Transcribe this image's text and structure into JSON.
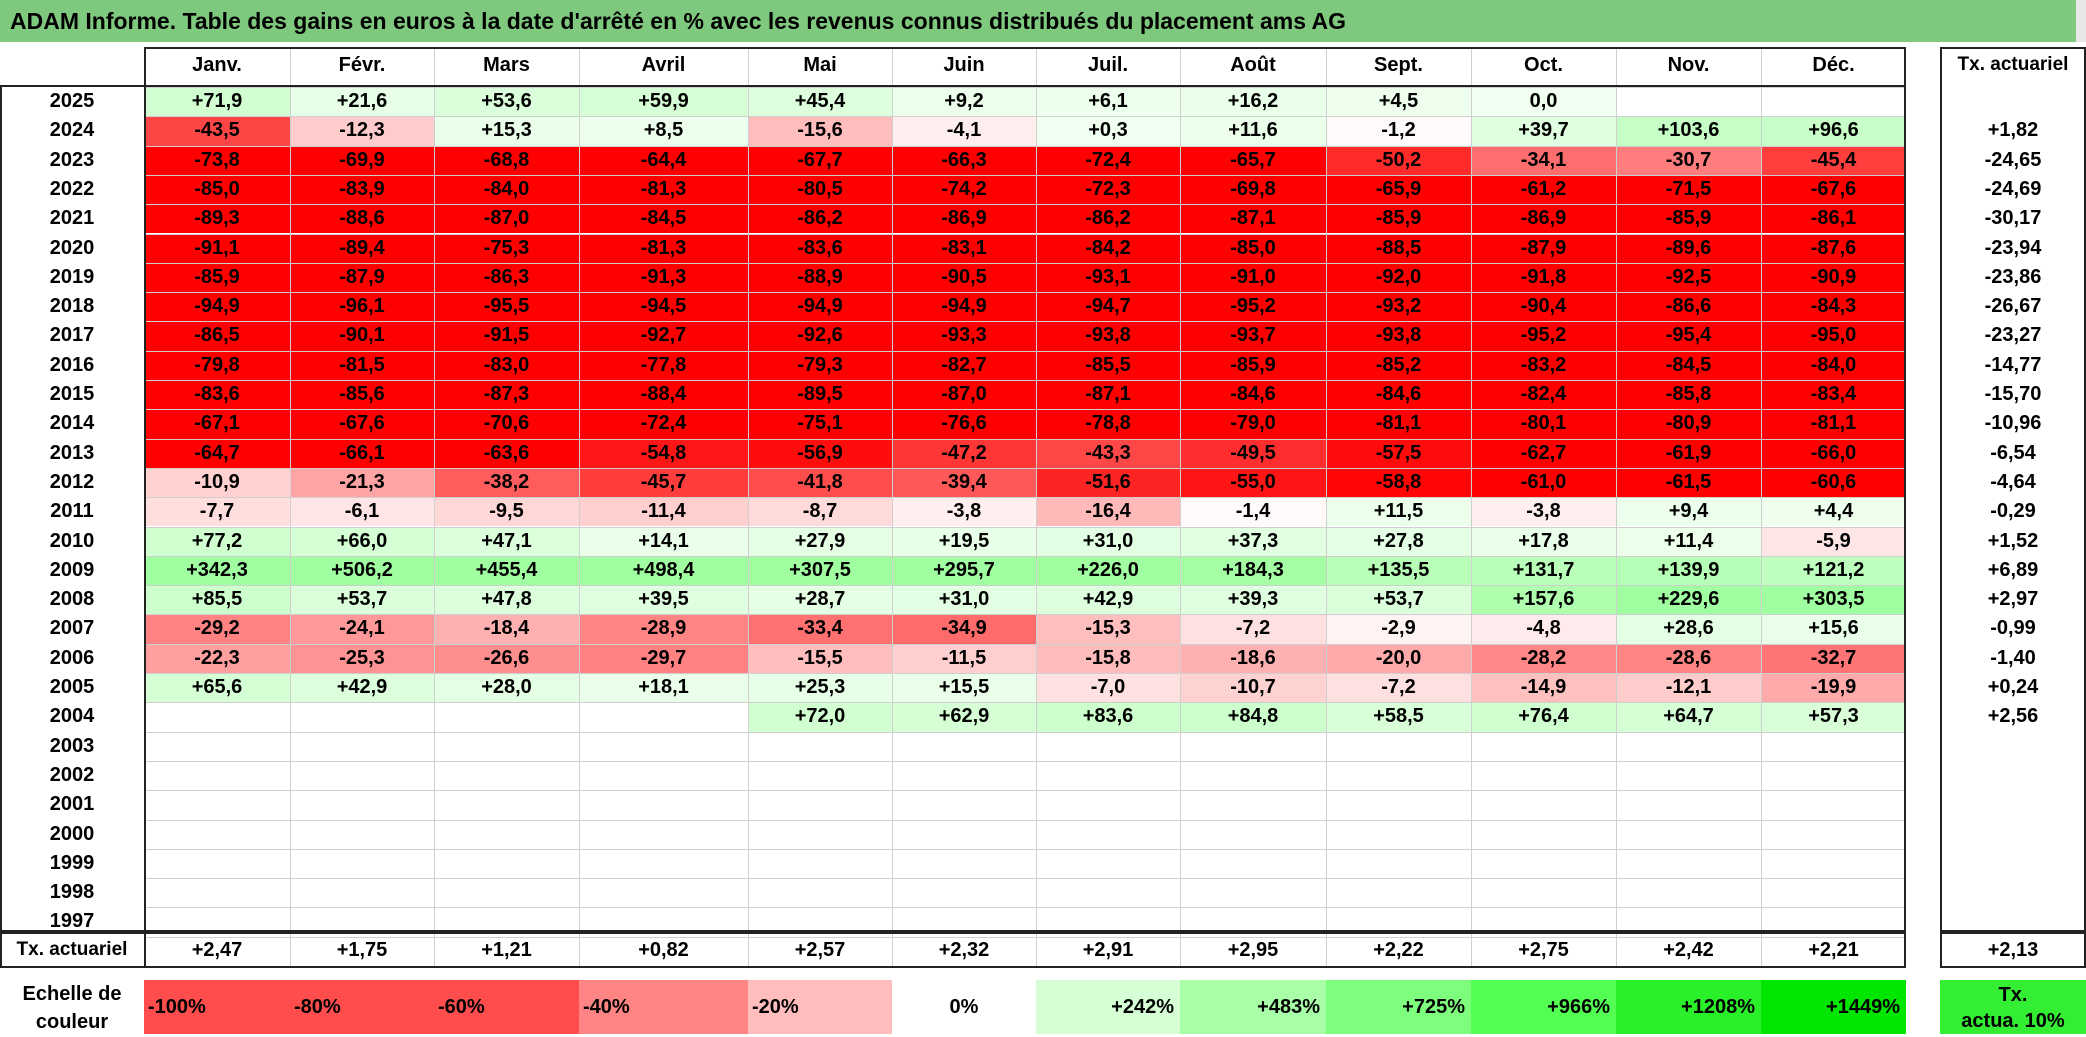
{
  "title": "ADAM Informe. Table des gains en euros à la date d'arrêté en % avec les revenus connus distribués du placement ams AG",
  "columns": [
    "Janv.",
    "Févr.",
    "Mars",
    "Avril",
    "Mai",
    "Juin",
    "Juil.",
    "Août",
    "Sept.",
    "Oct.",
    "Nov.",
    "Déc."
  ],
  "annual_header": "Tx. actuariel",
  "rows": [
    {
      "year": "2025",
      "values": [
        "+71,9",
        "+21,6",
        "+53,6",
        "+59,9",
        "+45,4",
        "+9,2",
        "+6,1",
        "+16,2",
        "+4,5",
        "0,0",
        "",
        ""
      ],
      "annual": ""
    },
    {
      "year": "2024",
      "values": [
        "-43,5",
        "-12,3",
        "+15,3",
        "+8,5",
        "-15,6",
        "-4,1",
        "+0,3",
        "+11,6",
        "-1,2",
        "+39,7",
        "+103,6",
        "+96,6"
      ],
      "annual": "+1,82"
    },
    {
      "year": "2023",
      "values": [
        "-73,8",
        "-69,9",
        "-68,8",
        "-64,4",
        "-67,7",
        "-66,3",
        "-72,4",
        "-65,7",
        "-50,2",
        "-34,1",
        "-30,7",
        "-45,4"
      ],
      "annual": "-24,65"
    },
    {
      "year": "2022",
      "values": [
        "-85,0",
        "-83,9",
        "-84,0",
        "-81,3",
        "-80,5",
        "-74,2",
        "-72,3",
        "-69,8",
        "-65,9",
        "-61,2",
        "-71,5",
        "-67,6"
      ],
      "annual": "-24,69"
    },
    {
      "year": "2021",
      "values": [
        "-89,3",
        "-88,6",
        "-87,0",
        "-84,5",
        "-86,2",
        "-86,9",
        "-86,2",
        "-87,1",
        "-85,9",
        "-86,9",
        "-85,9",
        "-86,1"
      ],
      "annual": "-30,17"
    },
    {
      "year": "2020",
      "values": [
        "-91,1",
        "-89,4",
        "-75,3",
        "-81,3",
        "-83,6",
        "-83,1",
        "-84,2",
        "-85,0",
        "-88,5",
        "-87,9",
        "-89,6",
        "-87,6"
      ],
      "annual": "-23,94"
    },
    {
      "year": "2019",
      "values": [
        "-85,9",
        "-87,9",
        "-86,3",
        "-91,3",
        "-88,9",
        "-90,5",
        "-93,1",
        "-91,0",
        "-92,0",
        "-91,8",
        "-92,5",
        "-90,9"
      ],
      "annual": "-23,86"
    },
    {
      "year": "2018",
      "values": [
        "-94,9",
        "-96,1",
        "-95,5",
        "-94,5",
        "-94,9",
        "-94,9",
        "-94,7",
        "-95,2",
        "-93,2",
        "-90,4",
        "-86,6",
        "-84,3"
      ],
      "annual": "-26,67"
    },
    {
      "year": "2017",
      "values": [
        "-86,5",
        "-90,1",
        "-91,5",
        "-92,7",
        "-92,6",
        "-93,3",
        "-93,8",
        "-93,7",
        "-93,8",
        "-95,2",
        "-95,4",
        "-95,0"
      ],
      "annual": "-23,27"
    },
    {
      "year": "2016",
      "values": [
        "-79,8",
        "-81,5",
        "-83,0",
        "-77,8",
        "-79,3",
        "-82,7",
        "-85,5",
        "-85,9",
        "-85,2",
        "-83,2",
        "-84,5",
        "-84,0"
      ],
      "annual": "-14,77"
    },
    {
      "year": "2015",
      "values": [
        "-83,6",
        "-85,6",
        "-87,3",
        "-88,4",
        "-89,5",
        "-87,0",
        "-87,1",
        "-84,6",
        "-84,6",
        "-82,4",
        "-85,8",
        "-83,4"
      ],
      "annual": "-15,70"
    },
    {
      "year": "2014",
      "values": [
        "-67,1",
        "-67,6",
        "-70,6",
        "-72,4",
        "-75,1",
        "-76,6",
        "-78,8",
        "-79,0",
        "-81,1",
        "-80,1",
        "-80,9",
        "-81,1"
      ],
      "annual": "-10,96"
    },
    {
      "year": "2013",
      "values": [
        "-64,7",
        "-66,1",
        "-63,6",
        "-54,8",
        "-56,9",
        "-47,2",
        "-43,3",
        "-49,5",
        "-57,5",
        "-62,7",
        "-61,9",
        "-66,0"
      ],
      "annual": "-6,54"
    },
    {
      "year": "2012",
      "values": [
        "-10,9",
        "-21,3",
        "-38,2",
        "-45,7",
        "-41,8",
        "-39,4",
        "-51,6",
        "-55,0",
        "-58,8",
        "-61,0",
        "-61,5",
        "-60,6"
      ],
      "annual": "-4,64"
    },
    {
      "year": "2011",
      "values": [
        "-7,7",
        "-6,1",
        "-9,5",
        "-11,4",
        "-8,7",
        "-3,8",
        "-16,4",
        "-1,4",
        "+11,5",
        "-3,8",
        "+9,4",
        "+4,4"
      ],
      "annual": "-0,29"
    },
    {
      "year": "2010",
      "values": [
        "+77,2",
        "+66,0",
        "+47,1",
        "+14,1",
        "+27,9",
        "+19,5",
        "+31,0",
        "+37,3",
        "+27,8",
        "+17,8",
        "+11,4",
        "-5,9"
      ],
      "annual": "+1,52"
    },
    {
      "year": "2009",
      "values": [
        "+342,3",
        "+506,2",
        "+455,4",
        "+498,4",
        "+307,5",
        "+295,7",
        "+226,0",
        "+184,3",
        "+135,5",
        "+131,7",
        "+139,9",
        "+121,2"
      ],
      "annual": "+6,89"
    },
    {
      "year": "2008",
      "values": [
        "+85,5",
        "+53,7",
        "+47,8",
        "+39,5",
        "+28,7",
        "+31,0",
        "+42,9",
        "+39,3",
        "+53,7",
        "+157,6",
        "+229,6",
        "+303,5"
      ],
      "annual": "+2,97"
    },
    {
      "year": "2007",
      "values": [
        "-29,2",
        "-24,1",
        "-18,4",
        "-28,9",
        "-33,4",
        "-34,9",
        "-15,3",
        "-7,2",
        "-2,9",
        "-4,8",
        "+28,6",
        "+15,6"
      ],
      "annual": "-0,99"
    },
    {
      "year": "2006",
      "values": [
        "-22,3",
        "-25,3",
        "-26,6",
        "-29,7",
        "-15,5",
        "-11,5",
        "-15,8",
        "-18,6",
        "-20,0",
        "-28,2",
        "-28,6",
        "-32,7"
      ],
      "annual": "-1,40"
    },
    {
      "year": "2005",
      "values": [
        "+65,6",
        "+42,9",
        "+28,0",
        "+18,1",
        "+25,3",
        "+15,5",
        "-7,0",
        "-10,7",
        "-7,2",
        "-14,9",
        "-12,1",
        "-19,9"
      ],
      "annual": "+0,24"
    },
    {
      "year": "2004",
      "values": [
        "",
        "",
        "",
        "",
        "+72,0",
        "+62,9",
        "+83,6",
        "+84,8",
        "+58,5",
        "+76,4",
        "+64,7",
        "+57,3"
      ],
      "annual": "+2,56"
    },
    {
      "year": "2003",
      "values": [
        "",
        "",
        "",
        "",
        "",
        "",
        "",
        "",
        "",
        "",
        "",
        ""
      ],
      "annual": ""
    },
    {
      "year": "2002",
      "values": [
        "",
        "",
        "",
        "",
        "",
        "",
        "",
        "",
        "",
        "",
        "",
        ""
      ],
      "annual": ""
    },
    {
      "year": "2001",
      "values": [
        "",
        "",
        "",
        "",
        "",
        "",
        "",
        "",
        "",
        "",
        "",
        ""
      ],
      "annual": ""
    },
    {
      "year": "2000",
      "values": [
        "",
        "",
        "",
        "",
        "",
        "",
        "",
        "",
        "",
        "",
        "",
        ""
      ],
      "annual": ""
    },
    {
      "year": "1999",
      "values": [
        "",
        "",
        "",
        "",
        "",
        "",
        "",
        "",
        "",
        "",
        "",
        ""
      ],
      "annual": ""
    },
    {
      "year": "1998",
      "values": [
        "",
        "",
        "",
        "",
        "",
        "",
        "",
        "",
        "",
        "",
        "",
        ""
      ],
      "annual": ""
    },
    {
      "year": "1997",
      "values": [
        "",
        "",
        "",
        "",
        "",
        "",
        "",
        "",
        "",
        "",
        "",
        ""
      ],
      "annual": ""
    }
  ],
  "totals": {
    "label": "Tx. actuariel",
    "values": [
      "+2,47",
      "+1,75",
      "+1,21",
      "+0,82",
      "+2,57",
      "+2,32",
      "+2,91",
      "+2,95",
      "+2,22",
      "+2,75",
      "+2,42",
      "+2,21"
    ],
    "annual": "+2,13"
  },
  "legend": {
    "label_line1": "Echelle de",
    "label_line2": "couleur",
    "steps": [
      {
        "text": "-100%",
        "color": "#ff4d4d",
        "align": "left"
      },
      {
        "text": "-80%",
        "color": "#ff4d4d",
        "align": "left"
      },
      {
        "text": "-60%",
        "color": "#ff4d4d",
        "align": "left"
      },
      {
        "text": "-40%",
        "color": "#ff8585",
        "align": "left"
      },
      {
        "text": "-20%",
        "color": "#ffbdbd",
        "align": "left"
      },
      {
        "text": "0%",
        "color": "#ffffff",
        "align": "center"
      },
      {
        "text": "+242%",
        "color": "#d6ffd6",
        "align": "right"
      },
      {
        "text": "+483%",
        "color": "#a8ffa8",
        "align": "right"
      },
      {
        "text": "+725%",
        "color": "#7dff7d",
        "align": "right"
      },
      {
        "text": "+966%",
        "color": "#52ff52",
        "align": "right"
      },
      {
        "text": "+1208%",
        "color": "#29f029",
        "align": "right"
      },
      {
        "text": "+1449%",
        "color": "#00e600",
        "align": "right"
      }
    ],
    "annual_line1": "Tx.",
    "annual_line2": "actua. 10%",
    "annual_color": "#33ee33"
  },
  "colors": {
    "title_bar": "#7fc97f",
    "negative_base": "#ff0000",
    "positive_base": "#00e600"
  }
}
